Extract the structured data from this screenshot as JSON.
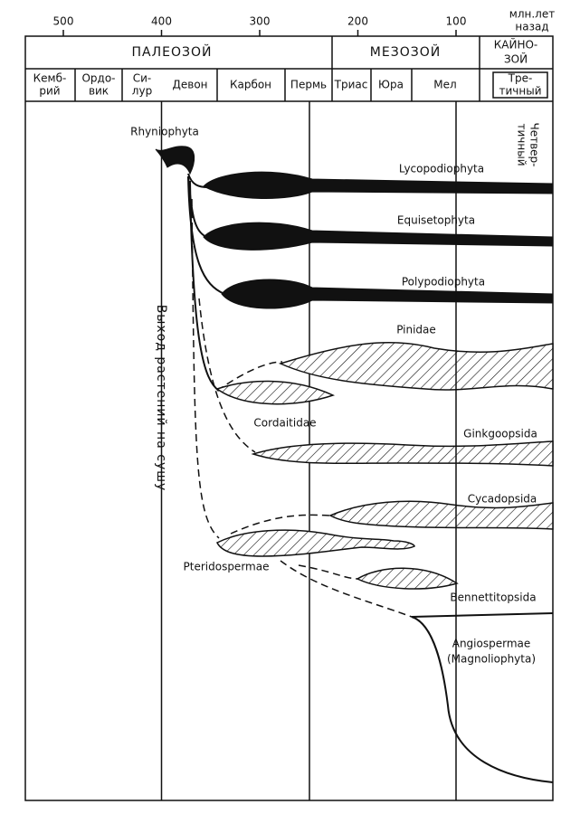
{
  "timescale": {
    "ticks": [
      500,
      400,
      300,
      200,
      100
    ],
    "unit_label": [
      "млн.лет",
      "назад"
    ]
  },
  "eras": [
    {
      "lines": [
        "ПАЛЕОЗОЙ"
      ]
    },
    {
      "lines": [
        "МЕЗОЗОЙ"
      ]
    },
    {
      "lines": [
        "КАЙНО-",
        "ЗОЙ"
      ]
    }
  ],
  "periods": [
    {
      "lines": [
        "Кемб-",
        "рий"
      ]
    },
    {
      "lines": [
        "Ордо-",
        "вик"
      ]
    },
    {
      "lines": [
        "Си-",
        "лур"
      ]
    },
    {
      "lines": [
        "Девон"
      ]
    },
    {
      "lines": [
        "Карбон"
      ]
    },
    {
      "lines": [
        "Пермь"
      ]
    },
    {
      "lines": [
        "Триас"
      ]
    },
    {
      "lines": [
        "Юра"
      ]
    },
    {
      "lines": [
        "Мел"
      ]
    },
    {
      "lines": [
        "Тре-",
        "тичный"
      ]
    }
  ],
  "taxa": [
    {
      "lines": [
        "Rhyniophyta"
      ]
    },
    {
      "lines": [
        "Lycopodiophyta"
      ]
    },
    {
      "lines": [
        "Equisetophyta"
      ]
    },
    {
      "lines": [
        "Polypodiophyta"
      ]
    },
    {
      "lines": [
        "Pinidae"
      ]
    },
    {
      "lines": [
        "Cordaitidae"
      ]
    },
    {
      "lines": [
        "Ginkgoopsida"
      ]
    },
    {
      "lines": [
        "Cycadopsida"
      ]
    },
    {
      "lines": [
        "Pteridospermae"
      ]
    },
    {
      "lines": [
        "Bennettitopsida"
      ]
    },
    {
      "lines": [
        "Angiospermae",
        "(Magnoliophyta)"
      ]
    }
  ],
  "annotations": {
    "land_emergence": "Выход растений на сушу",
    "quaternary": [
      "Четвер-",
      "тичный"
    ]
  }
}
